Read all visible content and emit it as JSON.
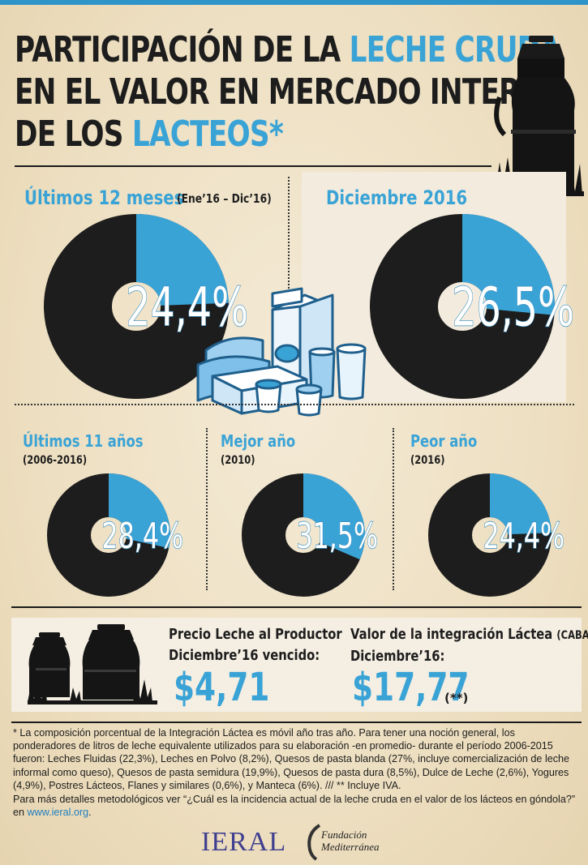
{
  "title": {
    "line1_prefix": "PARTICIPACIÓN DE LA ",
    "line1_highlight": "LECHE CRUDA",
    "line2": "EN EL VALOR EN MERCADO INTERNO",
    "line3_prefix": "DE LOS ",
    "line3_highlight": "LACTEOS*"
  },
  "colors": {
    "accent": "#3aa3d6",
    "dark": "#1d1d1d",
    "background": "#eddfc1"
  },
  "chart_data": [
    {
      "type": "pie",
      "title": "Últimos 12 meses",
      "subtitle": "(Ene’16 – Dic’16)",
      "label": "24,4%",
      "values": [
        24.4,
        75.6
      ]
    },
    {
      "type": "pie",
      "title": "Diciembre 2016",
      "subtitle": "",
      "label": "26,5%",
      "values": [
        26.5,
        73.5
      ]
    },
    {
      "type": "pie",
      "title": "Últimos 11 años",
      "subtitle": "(2006-2016)",
      "label": "28,4%",
      "values": [
        28.4,
        71.6
      ]
    },
    {
      "type": "pie",
      "title": "Mejor año",
      "subtitle": "(2010)",
      "label": "31,5%",
      "values": [
        31.5,
        68.5
      ]
    },
    {
      "type": "pie",
      "title": "Peor año",
      "subtitle": "(2016)",
      "label": "24,4%",
      "values": [
        24.4,
        75.6
      ]
    }
  ],
  "prices": {
    "producer_label_1": "Precio Leche al Productor",
    "producer_label_2": "Diciembre’16 vencido:",
    "producer_value": "$4,71",
    "chain_label_1": "Valor de la integración Láctea",
    "chain_label_small": "(CABA)*",
    "chain_label_2": "Diciembre’16:",
    "chain_value": "$17,77",
    "chain_note": "(**)"
  },
  "footnote": {
    "text": "* La composición porcentual de la Integración Láctea es móvil año tras año. Para tener una noción general, los ponderadores de litros de leche equivalente utilizados  para su elaboración -en promedio- durante el período 2006-2015 fueron: Leches Fluidas (22,3%), Leches en Polvo (8,2%), Quesos de pasta blanda (27%, incluye comercialización de leche informal como queso), Quesos de pasta semidura (19,9%), Quesos de pasta dura (8,5%), Dulce de Leche (2,6%),  Yogures (4,9%), Postres Lácteos, Flanes y similares (0,6%), y Manteca (6%). /// ** Incluye IVA.",
    "more_prefix": "Para más detalles metodológicos ver “¿Cuál es la incidencia actual de la leche cruda en el valor de los lácteos en góndola?” en ",
    "link": "www.ieral.org",
    "more_suffix": "."
  },
  "logos": {
    "ieral": "IERAL",
    "fundacion_line1": "Fundación",
    "fundacion_line2": "Mediterránea"
  }
}
